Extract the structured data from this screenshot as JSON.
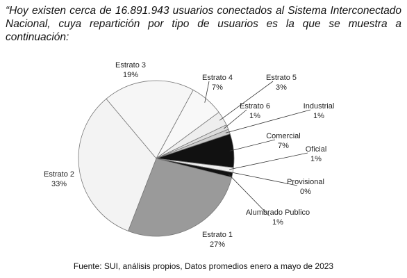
{
  "text": "“Hoy existen cerca de 16.891.943 usuarios conectados al Sistema Interconectado Nacional, cuya repartición por tipo de usuarios es la que se muestra a continuación:",
  "chart_data": {
    "type": "pie",
    "categories": [
      "Estrato 1",
      "Estrato 2",
      "Estrato 3",
      "Estrato 4",
      "Estrato 5",
      "Estrato 6",
      "Industrial",
      "Comercial",
      "Oficial",
      "Provisional",
      "Alumbrado Publico"
    ],
    "values": [
      27,
      33,
      19,
      7,
      3,
      1,
      1,
      7,
      1,
      0,
      1
    ],
    "value_labels": [
      "27%",
      "33%",
      "19%",
      "7%",
      "3%",
      "1%",
      "1%",
      "7%",
      "1%",
      "0%",
      "1%"
    ],
    "colors": [
      "#9a9a9a",
      "#f3f3f3",
      "#f6f6f6",
      "#f8f8f8",
      "#eeeeee",
      "#dddddd",
      "#cccccc",
      "#111111",
      "#eeeeee",
      "#222222",
      "#111111"
    ]
  },
  "source": "Fuente: SUI, análisis propios, Datos promedios enero a mayo de 2023"
}
